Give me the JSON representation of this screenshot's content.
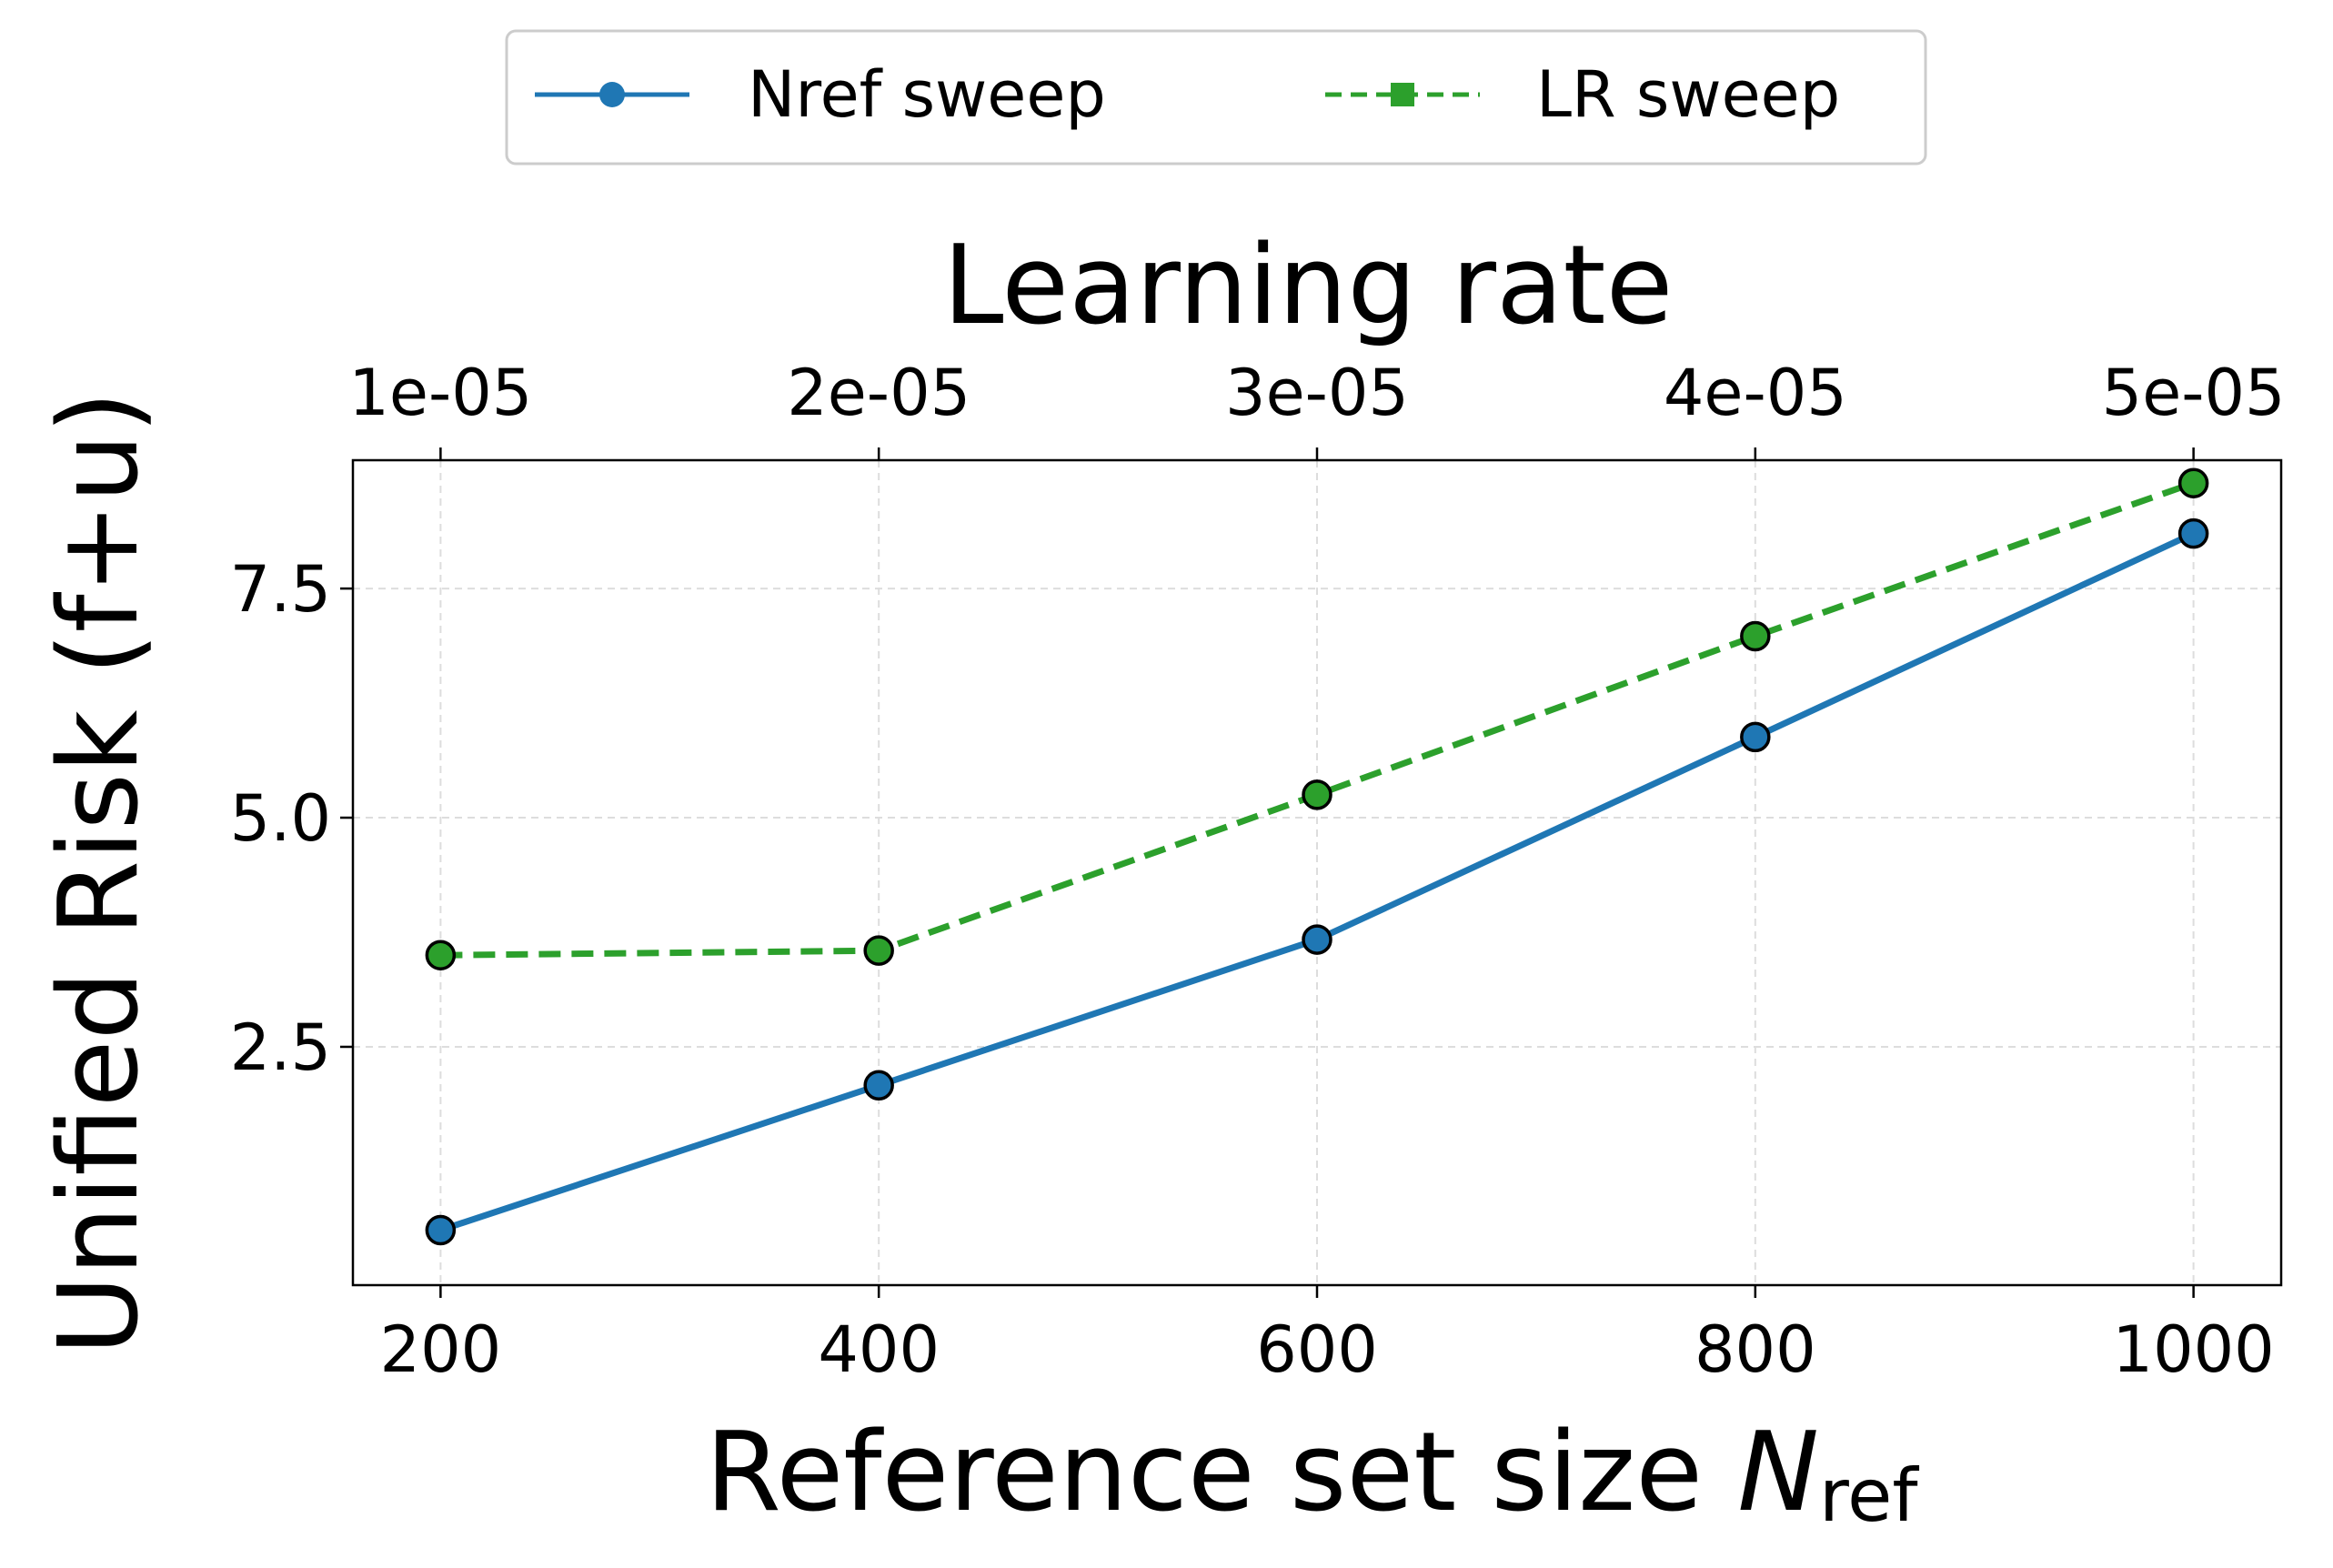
{
  "chart_data": {
    "type": "line",
    "x_bottom": {
      "label_main": "Reference set size ",
      "label_symbol": "N",
      "label_subscript": "ref",
      "ticks": [
        200,
        400,
        600,
        800,
        1000
      ],
      "range": [
        160,
        1040
      ]
    },
    "x_top": {
      "label": "Learning rate",
      "ticks": [
        "1e-05",
        "2e-05",
        "3e-05",
        "4e-05",
        "5e-05"
      ]
    },
    "y": {
      "label": "Unified Risk (f+u)",
      "ticks": [
        2.5,
        5.0,
        7.5
      ],
      "tick_labels": [
        "2.5",
        "5.0",
        "7.5"
      ],
      "range": [
        -0.1,
        8.9
      ]
    },
    "grid": true,
    "legend_position": "top-center",
    "series": [
      {
        "name": "Nref sweep",
        "axis": "bottom",
        "color": "#1f77b4",
        "style": "solid",
        "marker": "circle",
        "x": [
          200,
          400,
          600,
          800,
          1000
        ],
        "values": [
          0.5,
          2.08,
          3.67,
          5.88,
          8.1
        ]
      },
      {
        "name": "LR sweep",
        "axis": "top",
        "color": "#2ca02c",
        "style": "dashed",
        "marker": "square",
        "x": [
          200,
          400,
          600,
          800,
          1000
        ],
        "values": [
          3.5,
          3.55,
          5.25,
          6.98,
          8.65
        ]
      }
    ]
  }
}
